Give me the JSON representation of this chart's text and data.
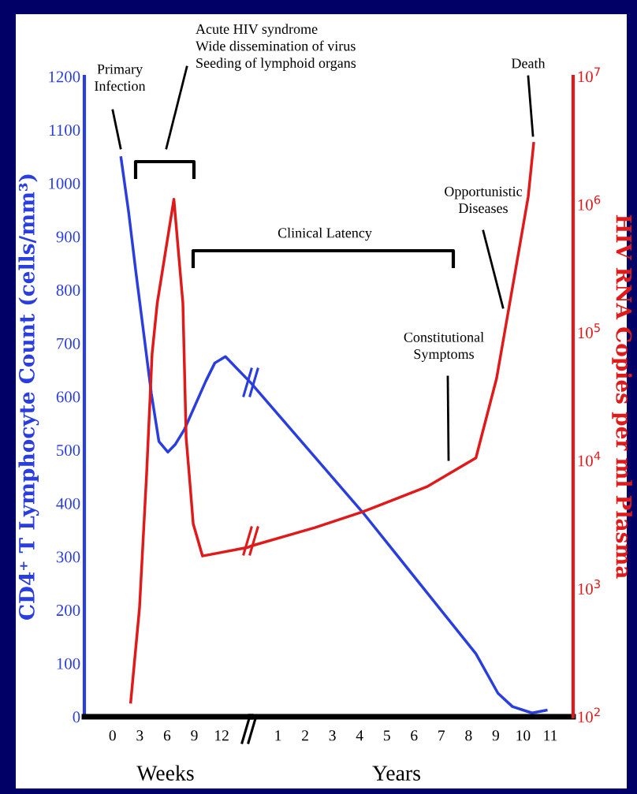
{
  "chart_data": [
    {
      "type": "line",
      "ylabel": "CD4⁺ T Lymphocyte Count (cells/mm³)",
      "xlabel": "Weeks",
      "annotations": [
        "Primary\nInfection",
        "Acute HIV syndrome\nWide dissemination of virus\nSeeding of lymphoid organs"
      ],
      "xlim": [
        -3.1,
        15.2
      ],
      "xticks": [
        0,
        3,
        6,
        9,
        12
      ],
      "ylim": [
        0,
        1200
      ],
      "yticks": [
        0,
        100,
        200,
        300,
        400,
        500,
        600,
        700,
        800,
        900,
        1000,
        1100,
        1200
      ],
      "y2lim": [
        100,
        10000000
      ],
      "tick_labels": "xy",
      "log": "y2",
      "grid": false,
      "marker": "none",
      "line_style": "solid",
      "series": [
        {
          "color": "#2a3ee0",
          "x": [
            0.93,
            1.77,
            2.58,
            3.42,
            4.26,
            5.1,
            6.09,
            6.93,
            7.92,
            10.26,
            11.25,
            12.42,
            15.2
          ],
          "values": [
            1048,
            946,
            832,
            720,
            607,
            516,
            496,
            511,
            539,
            629,
            663,
            675,
            626
          ]
        },
        {
          "color": "#e01a1a",
          "axis": "y2",
          "x": [
            2.0,
            2.97,
            3.75,
            4.35,
            4.92,
            6.75,
            7.74,
            8.1,
            8.43,
            8.88,
            9.9,
            14.88,
            15.2
          ],
          "values": [
            130,
            710,
            7900,
            68000,
            170000,
            1100000,
            170000,
            15000,
            7900,
            3200,
            1800,
            2100,
            2150
          ]
        }
      ]
    },
    {
      "type": "line",
      "y2label": "HIV RNA Copies per ml Plasma",
      "xlabel": "Years",
      "annotations": [
        "Clinical Latency",
        "Constitutional\nSymptoms",
        "Opportunistic\nDiseases",
        "Death"
      ],
      "xlim": [
        0,
        11.84
      ],
      "xticks": [
        1,
        2,
        3,
        4,
        5,
        6,
        7,
        8,
        9,
        10,
        11
      ],
      "ylim": [
        0,
        1200
      ],
      "y2lim": [
        100,
        10000000
      ],
      "y2ticks": [
        {
          "value": 100,
          "label": "10$^{2}$"
        },
        {
          "value": 1000,
          "label": "10$^{3}$"
        },
        {
          "value": 10000,
          "label": "10$^{4}$"
        },
        {
          "value": 100000,
          "label": "10$^{5}$"
        },
        {
          "value": 1000000,
          "label": "10$^{6}$"
        },
        {
          "value": 10000000,
          "label": "10$^{7}$"
        }
      ],
      "tick_labels": "xy2",
      "log": "y2",
      "grid": false,
      "marker": "none",
      "line_style": "solid",
      "series": [
        {
          "color": "#2a3ee0",
          "x": [
            0,
            4.13,
            8.27,
            9.08,
            9.61,
            10.33,
            10.85
          ],
          "values": [
            626,
            382,
            118,
            44,
            19,
            7,
            12
          ]
        },
        {
          "color": "#e01a1a",
          "axis": "y2",
          "x": [
            0,
            2.36,
            4.13,
            6.5,
            8.27,
            9.03,
            9.69,
            10.19,
            10.39
          ],
          "values": [
            2150,
            3000,
            4000,
            6300,
            10500,
            44000,
            280000,
            1150000,
            3000000
          ]
        }
      ]
    }
  ]
}
